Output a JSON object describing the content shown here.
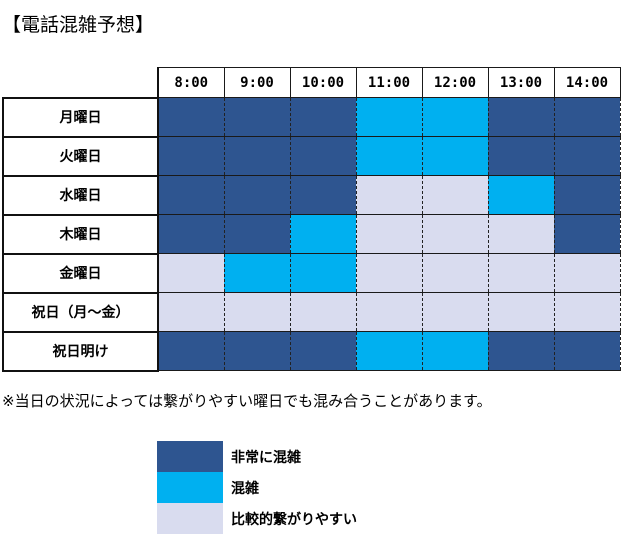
{
  "title": "【電話混雑予想】",
  "times": [
    "8:00",
    "9:00",
    "10:00",
    "11:00",
    "12:00",
    "13:00",
    "14:00"
  ],
  "rows": [
    {
      "day": "月曜日",
      "levels": [
        3,
        3,
        3,
        2,
        2,
        3,
        3
      ]
    },
    {
      "day": "火曜日",
      "levels": [
        3,
        3,
        3,
        2,
        2,
        3,
        3
      ]
    },
    {
      "day": "水曜日",
      "levels": [
        3,
        3,
        3,
        1,
        1,
        2,
        3
      ]
    },
    {
      "day": "木曜日",
      "levels": [
        3,
        3,
        2,
        1,
        1,
        1,
        3
      ]
    },
    {
      "day": "金曜日",
      "levels": [
        1,
        2,
        2,
        1,
        1,
        1,
        1
      ]
    },
    {
      "day": "祝日（月～金）",
      "levels": [
        1,
        1,
        1,
        1,
        1,
        1,
        1
      ]
    },
    {
      "day": "祝日明け",
      "levels": [
        3,
        3,
        3,
        2,
        2,
        3,
        3
      ]
    }
  ],
  "note": "※当日の状況によっては繋がりやすい曜日でも混み合うことがあります。",
  "legend": [
    {
      "level": 3,
      "label": "非常に混雑",
      "color": "#2e5590"
    },
    {
      "level": 2,
      "label": "混雑",
      "color": "#00b0f0"
    },
    {
      "level": 1,
      "label": "比較的繋がりやすい",
      "color": "#d9dcef"
    }
  ]
}
